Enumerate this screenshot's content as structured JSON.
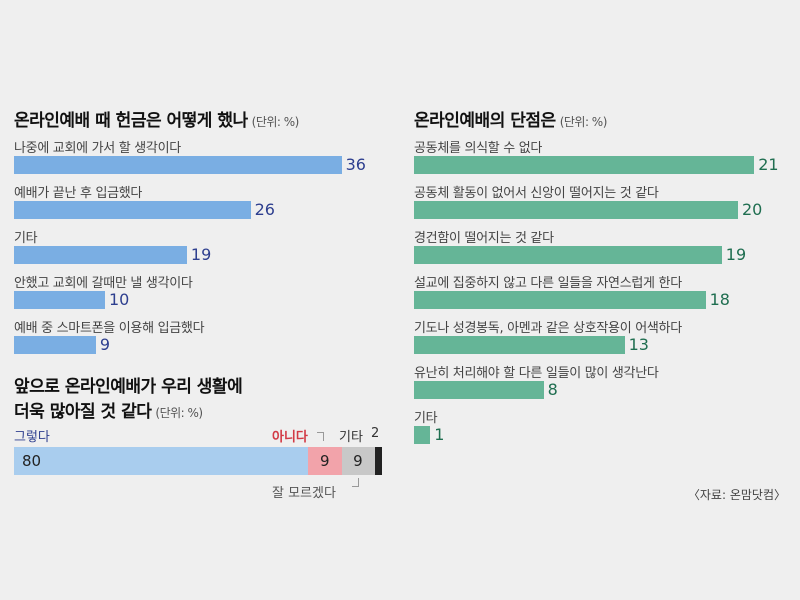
{
  "chart_data": [
    {
      "type": "bar",
      "orientation": "horizontal",
      "title": "온라인예배 때 헌금은 어떻게 했나",
      "unit": "(단위: %)",
      "categories": [
        "나중에 교회에 가서 할 생각이다",
        "예배가 끝난 후 입금했다",
        "기타",
        "안했고 교회에 갈때만 낼 생각이다",
        "예배 중 스마트폰을 이용해 입금했다"
      ],
      "values": [
        36,
        26,
        19,
        10,
        9
      ],
      "color": "#7aaee3"
    },
    {
      "type": "bar",
      "orientation": "horizontal",
      "title": "온라인예배의 단점은",
      "unit": "(단위: %)",
      "categories": [
        "공동체를 의식할 수 없다",
        "공동체 활동이 없어서 신앙이 떨어지는 것 같다",
        "경건함이 떨어지는 것 같다",
        "설교에 집중하지 않고 다른 일들을 자연스럽게 한다",
        "기도나 성경봉독, 아멘과 같은 상호작용이 어색하다",
        "유난히 처리해야 할 다른 일들이 많이 생각난다",
        "기타"
      ],
      "values": [
        21,
        20,
        19,
        18,
        13,
        8,
        1
      ],
      "color": "#65b597"
    },
    {
      "type": "bar",
      "orientation": "stacked-horizontal",
      "title_line1": "앞으로 온라인예배가 우리 생활에",
      "title_line2": "더욱 많아질 것 같다",
      "unit": "(단위: %)",
      "series": [
        {
          "name": "그렇다",
          "value": 80,
          "color": "#a9cdee",
          "label_color": "#2e3f8f"
        },
        {
          "name": "아니다",
          "value": 9,
          "color": "#f2a3aa",
          "label_color": "#d23a45"
        },
        {
          "name": "잘 모르겠다",
          "value": 9,
          "color": "#c8c8c8",
          "label_color": "#555555"
        },
        {
          "name": "기타",
          "value": 2,
          "color": "#222222",
          "label_color": "#333333"
        }
      ]
    }
  ],
  "source": "〈자료: 온맘닷컴〉"
}
